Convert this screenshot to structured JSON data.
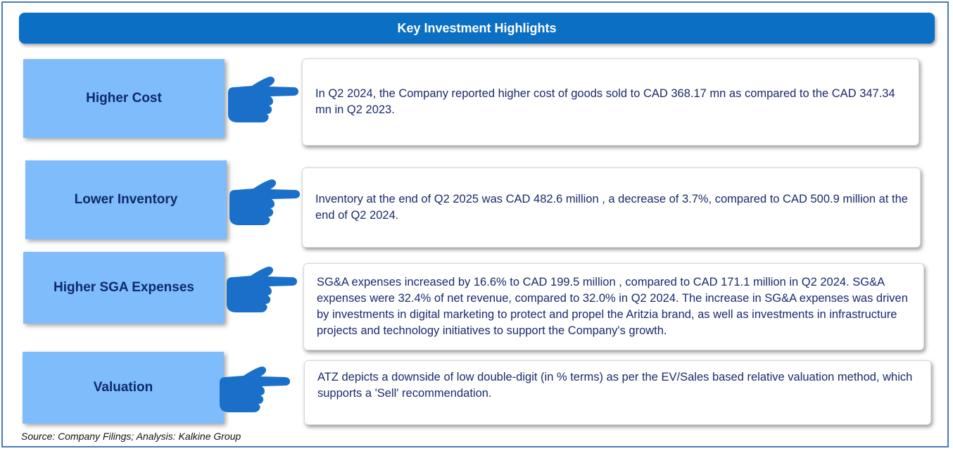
{
  "header": {
    "title": "Key Investment Highlights"
  },
  "highlights": [
    {
      "label": "Higher Cost",
      "text": "In Q2 2024, the Company reported   higher cost of goods sold to CAD 368.17 mn as compared to the CAD 347.34 mn in Q2 2023."
    },
    {
      "label": "Lower  Inventory",
      "text": "Inventory at the end of Q2 2025 was CAD 482.6 million , a decrease of 3.7%, compared to CAD 500.9 million at the end of Q2 2024."
    },
    {
      "label": "Higher SGA Expenses",
      "text": "SG&A expenses increased by 16.6% to CAD 199.5 million , compared to CAD 171.1 million in Q2 2024. SG&A expenses were 32.4% of net revenue, compared to 32.0% in Q2 2024. The increase in SG&A expenses was driven by investments in digital marketing to protect and propel the Aritzia brand, as well as investments in infrastructure projects and technology initiatives to support the Company's growth."
    },
    {
      "label": "Valuation",
      "text": "ATZ depicts a downside of low double-digit (in % terms) as per the EV/Sales based relative valuation method, which supports a 'Sell' recommendation."
    }
  ],
  "icons": {
    "pointer": "pointing-hand-icon"
  },
  "colors": {
    "header": "#0b6fc4",
    "label_fill": "#7fbcfb",
    "label_text": "#0e2a6b",
    "hand": "#1a6fc8"
  },
  "footer": {
    "source": "Source: Company Filings; Analysis: Kalkine Group"
  }
}
